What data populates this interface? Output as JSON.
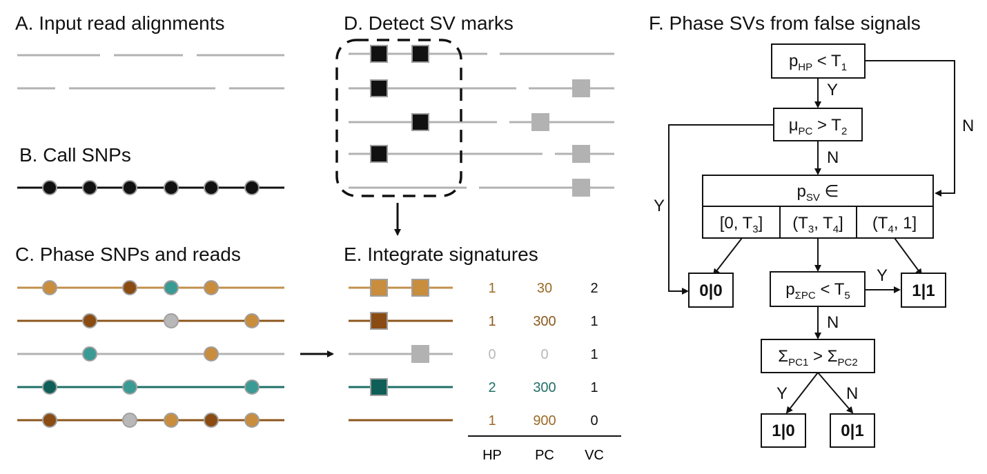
{
  "colors": {
    "grey": "#b2b2b2",
    "black": "#111111",
    "light_brown": "#c98d3e",
    "dark_brown": "#8a4c12",
    "teal": "#3a9a94",
    "dark_teal": "#0f5f58",
    "read_light": "#c2904c",
    "read_dark": "#8c561c",
    "read_teal": "#1f6f68",
    "snp_outline": "#a0a0a0"
  },
  "panels": {
    "a": {
      "title": "A. Input read alignments"
    },
    "b": {
      "title": "B. Call SNPs"
    },
    "c": {
      "title": "C. Phase SNPs and reads"
    },
    "d": {
      "title": "D. Detect SV marks"
    },
    "e": {
      "title": "E. Integrate signatures",
      "columns": [
        "HP",
        "PC",
        "VC"
      ],
      "rows": [
        {
          "hp": "1",
          "pc": "30",
          "vc": "2",
          "color": "#9a6a25"
        },
        {
          "hp": "1",
          "pc": "300",
          "vc": "1",
          "color": "#8a5a1c"
        },
        {
          "hp": "0",
          "pc": "0",
          "vc": "1",
          "color": "#b8b8b8"
        },
        {
          "hp": "2",
          "pc": "300",
          "vc": "1",
          "color": "#1f6f68"
        },
        {
          "hp": "1",
          "pc": "900",
          "vc": "0",
          "color": "#9a6a25"
        }
      ]
    },
    "f": {
      "title": "F. Phase SVs from false signals",
      "nodes": {
        "n1": {
          "main": "p",
          "sub": "HP",
          "rest": " < T",
          "sub2": "1"
        },
        "n2": {
          "main": "μ",
          "sub": "PC",
          "rest": " > T",
          "sub2": "2"
        },
        "n3_head": {
          "main": "p",
          "sub": "SV",
          "rest": " ∈"
        },
        "n3_c1": {
          "pre": "[0, T",
          "sub": "3",
          "post": "]"
        },
        "n3_c2": {
          "pre": "(T",
          "sub": "3",
          "mid": ", T",
          "sub2": "4",
          "post": "]"
        },
        "n3_c3": {
          "pre": "(T",
          "sub": "4",
          "post": ", 1]"
        },
        "n4": {
          "main": "p",
          "sub": "ΣPC",
          "rest": " < T",
          "sub2": "5"
        },
        "n5": {
          "pre": "Σ",
          "sub": "PC1",
          "mid": " > Σ",
          "sub2": "PC2"
        },
        "out00": "0|0",
        "out11": "1|1",
        "out10": "1|0",
        "out01": "0|1"
      },
      "edge_labels": {
        "y1": "Y",
        "n_right": "N",
        "n2_down": "N",
        "y_left": "Y",
        "y_n4": "Y",
        "n4_down": "N",
        "y_n5": "Y",
        "n_n5": "N"
      }
    }
  }
}
